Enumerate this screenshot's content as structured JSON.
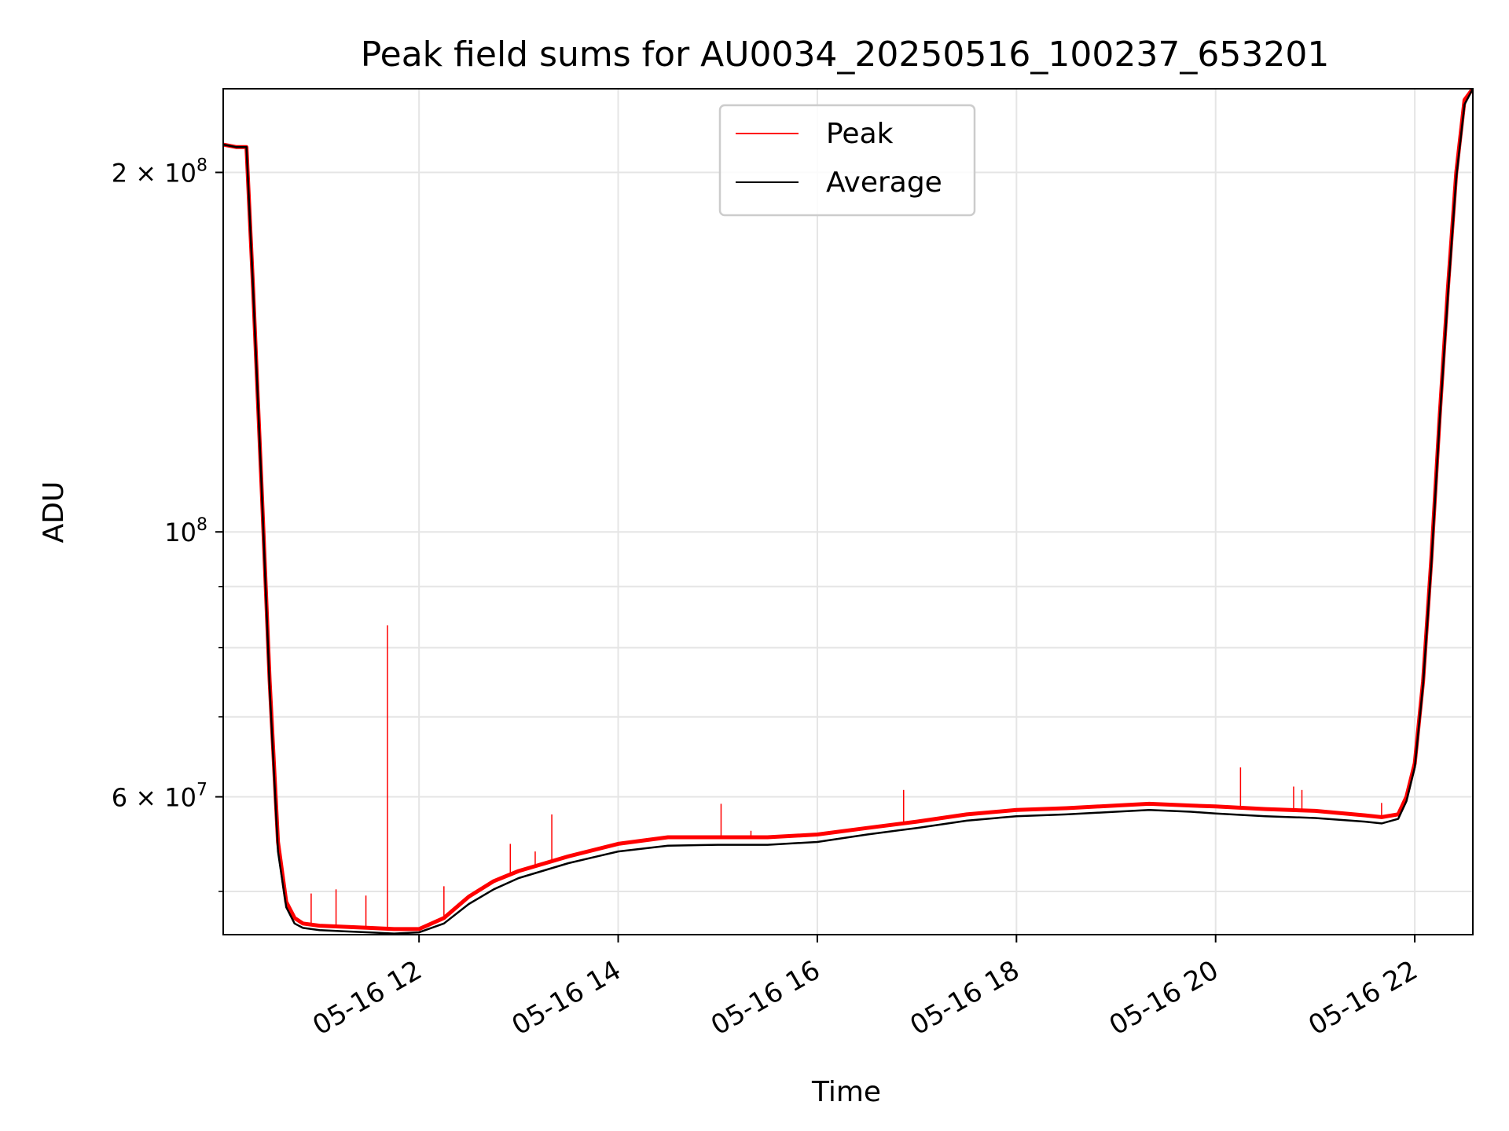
{
  "chart_data": {
    "type": "line",
    "title": "Peak field sums for AU0034_20250516_100237_653201",
    "xlabel": "Time",
    "ylabel": "ADU",
    "yscale": "log",
    "grid": true,
    "legend_position": "upper center",
    "xlim": [
      "2025-05-16T10:02",
      "2025-05-16T22:35"
    ],
    "ylim": [
      46000000,
      235000000
    ],
    "x_ticks": [
      {
        "value": "2025-05-16T12:00",
        "label": "05-16 12"
      },
      {
        "value": "2025-05-16T14:00",
        "label": "05-16 14"
      },
      {
        "value": "2025-05-16T16:00",
        "label": "05-16 16"
      },
      {
        "value": "2025-05-16T18:00",
        "label": "05-16 18"
      },
      {
        "value": "2025-05-16T20:00",
        "label": "05-16 20"
      },
      {
        "value": "2025-05-16T22:00",
        "label": "05-16 22"
      }
    ],
    "y_major_ticks": [
      {
        "value": 60000000,
        "mantissa": "6 × 10",
        "exponent": "7"
      },
      {
        "value": 100000000,
        "mantissa": "10",
        "exponent": "8"
      },
      {
        "value": 200000000,
        "mantissa": "2 × 10",
        "exponent": "8"
      }
    ],
    "y_minor_ticks": [
      50000000,
      70000000,
      80000000,
      90000000
    ],
    "series": [
      {
        "name": "Peak",
        "color": "#ff0000",
        "x": [
          "2025-05-16T10:02",
          "2025-05-16T10:10",
          "2025-05-16T10:16",
          "2025-05-16T10:20",
          "2025-05-16T10:25",
          "2025-05-16T10:30",
          "2025-05-16T10:35",
          "2025-05-16T10:40",
          "2025-05-16T10:45",
          "2025-05-16T10:50",
          "2025-05-16T11:00",
          "2025-05-16T11:15",
          "2025-05-16T11:30",
          "2025-05-16T11:45",
          "2025-05-16T12:00",
          "2025-05-16T12:15",
          "2025-05-16T12:30",
          "2025-05-16T12:45",
          "2025-05-16T13:00",
          "2025-05-16T13:30",
          "2025-05-16T14:00",
          "2025-05-16T14:30",
          "2025-05-16T15:00",
          "2025-05-16T15:30",
          "2025-05-16T16:00",
          "2025-05-16T16:30",
          "2025-05-16T17:00",
          "2025-05-16T17:30",
          "2025-05-16T18:00",
          "2025-05-16T18:30",
          "2025-05-16T19:00",
          "2025-05-16T19:20",
          "2025-05-16T19:45",
          "2025-05-16T20:00",
          "2025-05-16T20:30",
          "2025-05-16T21:00",
          "2025-05-16T21:30",
          "2025-05-16T21:40",
          "2025-05-16T21:50",
          "2025-05-16T21:55",
          "2025-05-16T22:00",
          "2025-05-16T22:05",
          "2025-05-16T22:10",
          "2025-05-16T22:15",
          "2025-05-16T22:20",
          "2025-05-16T22:25",
          "2025-05-16T22:30",
          "2025-05-16T22:35"
        ],
        "y": [
          211000000,
          210000000,
          210000000,
          160000000,
          110000000,
          75000000,
          55000000,
          49000000,
          47500000,
          47000000,
          46800000,
          46700000,
          46600000,
          46500000,
          46500000,
          47500000,
          49500000,
          51000000,
          52000000,
          53500000,
          54800000,
          55500000,
          55500000,
          55500000,
          55800000,
          56500000,
          57200000,
          58000000,
          58500000,
          58700000,
          59000000,
          59200000,
          59000000,
          58900000,
          58600000,
          58400000,
          57900000,
          57700000,
          58000000,
          60000000,
          64000000,
          75000000,
          95000000,
          125000000,
          160000000,
          200000000,
          230000000,
          235000000
        ]
      },
      {
        "name": "Average",
        "color": "#000000",
        "x": [
          "2025-05-16T10:02",
          "2025-05-16T10:10",
          "2025-05-16T10:16",
          "2025-05-16T10:20",
          "2025-05-16T10:25",
          "2025-05-16T10:30",
          "2025-05-16T10:35",
          "2025-05-16T10:40",
          "2025-05-16T10:45",
          "2025-05-16T10:50",
          "2025-05-16T11:00",
          "2025-05-16T11:15",
          "2025-05-16T11:30",
          "2025-05-16T11:45",
          "2025-05-16T12:00",
          "2025-05-16T12:15",
          "2025-05-16T12:30",
          "2025-05-16T12:45",
          "2025-05-16T13:00",
          "2025-05-16T13:30",
          "2025-05-16T14:00",
          "2025-05-16T14:30",
          "2025-05-16T15:00",
          "2025-05-16T15:30",
          "2025-05-16T16:00",
          "2025-05-16T16:30",
          "2025-05-16T17:00",
          "2025-05-16T17:30",
          "2025-05-16T18:00",
          "2025-05-16T18:30",
          "2025-05-16T19:00",
          "2025-05-16T19:20",
          "2025-05-16T19:45",
          "2025-05-16T20:00",
          "2025-05-16T20:30",
          "2025-05-16T21:00",
          "2025-05-16T21:30",
          "2025-05-16T21:40",
          "2025-05-16T21:50",
          "2025-05-16T21:55",
          "2025-05-16T22:00",
          "2025-05-16T22:05",
          "2025-05-16T22:10",
          "2025-05-16T22:15",
          "2025-05-16T22:20",
          "2025-05-16T22:25",
          "2025-05-16T22:30",
          "2025-05-16T22:35"
        ],
        "y": [
          211000000,
          210000000,
          210000000,
          160000000,
          110000000,
          74000000,
          54000000,
          48500000,
          47000000,
          46600000,
          46400000,
          46300000,
          46200000,
          46100000,
          46200000,
          47000000,
          48800000,
          50200000,
          51300000,
          52800000,
          54000000,
          54600000,
          54700000,
          54700000,
          55000000,
          55800000,
          56500000,
          57300000,
          57800000,
          58000000,
          58300000,
          58500000,
          58300000,
          58100000,
          57800000,
          57600000,
          57200000,
          57000000,
          57500000,
          59500000,
          63500000,
          74500000,
          94000000,
          124000000,
          158000000,
          198000000,
          228000000,
          235000000
        ]
      }
    ],
    "spikes": [
      {
        "series": "Peak",
        "x": "2025-05-16T11:41",
        "y": 83500000
      },
      {
        "series": "Peak",
        "x": "2025-05-16T10:55",
        "y": 49800000
      },
      {
        "series": "Peak",
        "x": "2025-05-16T11:10",
        "y": 50200000
      },
      {
        "series": "Peak",
        "x": "2025-05-16T11:28",
        "y": 49600000
      },
      {
        "series": "Peak",
        "x": "2025-05-16T12:15",
        "y": 50500000
      },
      {
        "series": "Peak",
        "x": "2025-05-16T12:55",
        "y": 54800000
      },
      {
        "series": "Peak",
        "x": "2025-05-16T13:10",
        "y": 54000000
      },
      {
        "series": "Peak",
        "x": "2025-05-16T13:20",
        "y": 58000000
      },
      {
        "series": "Peak",
        "x": "2025-05-16T15:02",
        "y": 59200000
      },
      {
        "series": "Peak",
        "x": "2025-05-16T15:20",
        "y": 56200000
      },
      {
        "series": "Peak",
        "x": "2025-05-16T16:52",
        "y": 60800000
      },
      {
        "series": "Peak",
        "x": "2025-05-16T20:15",
        "y": 63500000
      },
      {
        "series": "Peak",
        "x": "2025-05-16T20:47",
        "y": 61200000
      },
      {
        "series": "Peak",
        "x": "2025-05-16T20:52",
        "y": 60800000
      },
      {
        "series": "Peak",
        "x": "2025-05-16T21:40",
        "y": 59300000
      }
    ],
    "legend": [
      {
        "name": "Peak",
        "color": "#ff0000"
      },
      {
        "name": "Average",
        "color": "#000000"
      }
    ]
  }
}
